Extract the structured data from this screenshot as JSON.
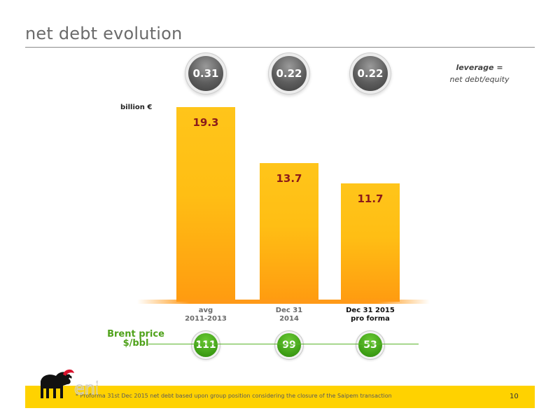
{
  "slide": {
    "title": "net debt evolution",
    "unit_label": "billion €",
    "leverage_term": "leverage =",
    "leverage_def": "net debt/equity",
    "brent_label_line1": "Brent price",
    "brent_label_line2": "$/bbl",
    "footnote": "* Proforma 31st Dec 2015 net debt based upon group position considering the closure of the Saipem transaction",
    "page_number": "10",
    "logo_text": "eni"
  },
  "chart_data": {
    "type": "bar",
    "categories": [
      [
        "avg",
        "2011-2013"
      ],
      [
        "Dec 31",
        "2014"
      ],
      [
        "Dec 31 2015",
        "pro forma"
      ]
    ],
    "values": [
      19.3,
      13.7,
      11.7
    ],
    "value_labels": [
      "19.3",
      "13.7",
      "11.7"
    ],
    "unit": "billion €",
    "ylim": [
      0,
      20.8
    ],
    "leverage": [
      "0.31",
      "0.22",
      "0.22"
    ],
    "brent_price": [
      "111",
      "99",
      "53"
    ],
    "grid": false
  },
  "colors": {
    "bar_top": "#ffc51a",
    "bar_bottom": "#ff9b10",
    "value_text": "#8b1a1a",
    "brent_green": "#4fa21a",
    "footer_yellow": "#ffd200",
    "title_gray": "#6b6b6b"
  }
}
